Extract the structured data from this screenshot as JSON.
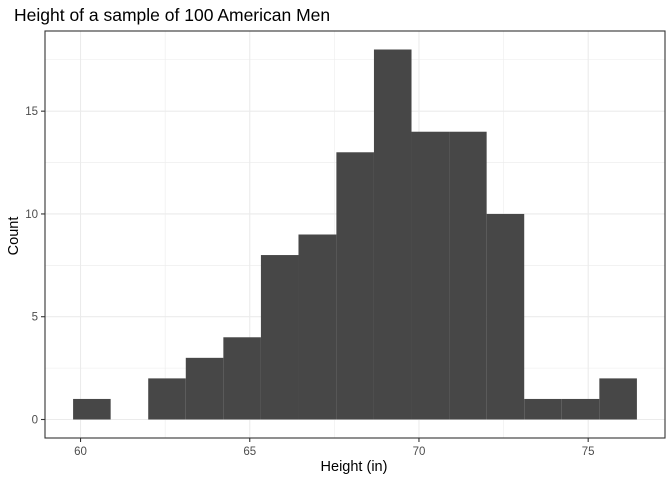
{
  "chart_data": {
    "type": "bar",
    "title": "Height of a sample of 100 American Men",
    "xlabel": "Height (in)",
    "ylabel": "Count",
    "bin_width": 1.111,
    "bins": [
      {
        "start": 59.78,
        "end": 60.89,
        "count": 1
      },
      {
        "start": 60.89,
        "end": 62.0,
        "count": 0
      },
      {
        "start": 62.0,
        "end": 63.11,
        "count": 2
      },
      {
        "start": 63.11,
        "end": 64.22,
        "count": 3
      },
      {
        "start": 64.22,
        "end": 65.33,
        "count": 4
      },
      {
        "start": 65.33,
        "end": 66.44,
        "count": 8
      },
      {
        "start": 66.44,
        "end": 67.56,
        "count": 9
      },
      {
        "start": 67.56,
        "end": 68.67,
        "count": 13
      },
      {
        "start": 68.67,
        "end": 69.78,
        "count": 18
      },
      {
        "start": 69.78,
        "end": 70.89,
        "count": 14
      },
      {
        "start": 70.89,
        "end": 72.0,
        "count": 14
      },
      {
        "start": 72.0,
        "end": 73.11,
        "count": 10
      },
      {
        "start": 73.11,
        "end": 74.22,
        "count": 1
      },
      {
        "start": 74.22,
        "end": 75.33,
        "count": 1
      },
      {
        "start": 75.33,
        "end": 76.44,
        "count": 2
      }
    ],
    "xlim": [
      58.95,
      77.27
    ],
    "ylim": [
      -0.9,
      18.9
    ],
    "x_ticks": [
      60,
      65,
      70,
      75
    ],
    "x_minor_ticks": [
      62.5,
      67.5,
      72.5,
      77.5
    ],
    "y_ticks": [
      0,
      5,
      10,
      15
    ],
    "y_minor_ticks": [
      2.5,
      7.5,
      12.5,
      17.5
    ],
    "grid": true,
    "theme": "bw",
    "bar_color": "#474747",
    "grid_color": "#ebebeb",
    "panel_border_color": "#333333"
  }
}
